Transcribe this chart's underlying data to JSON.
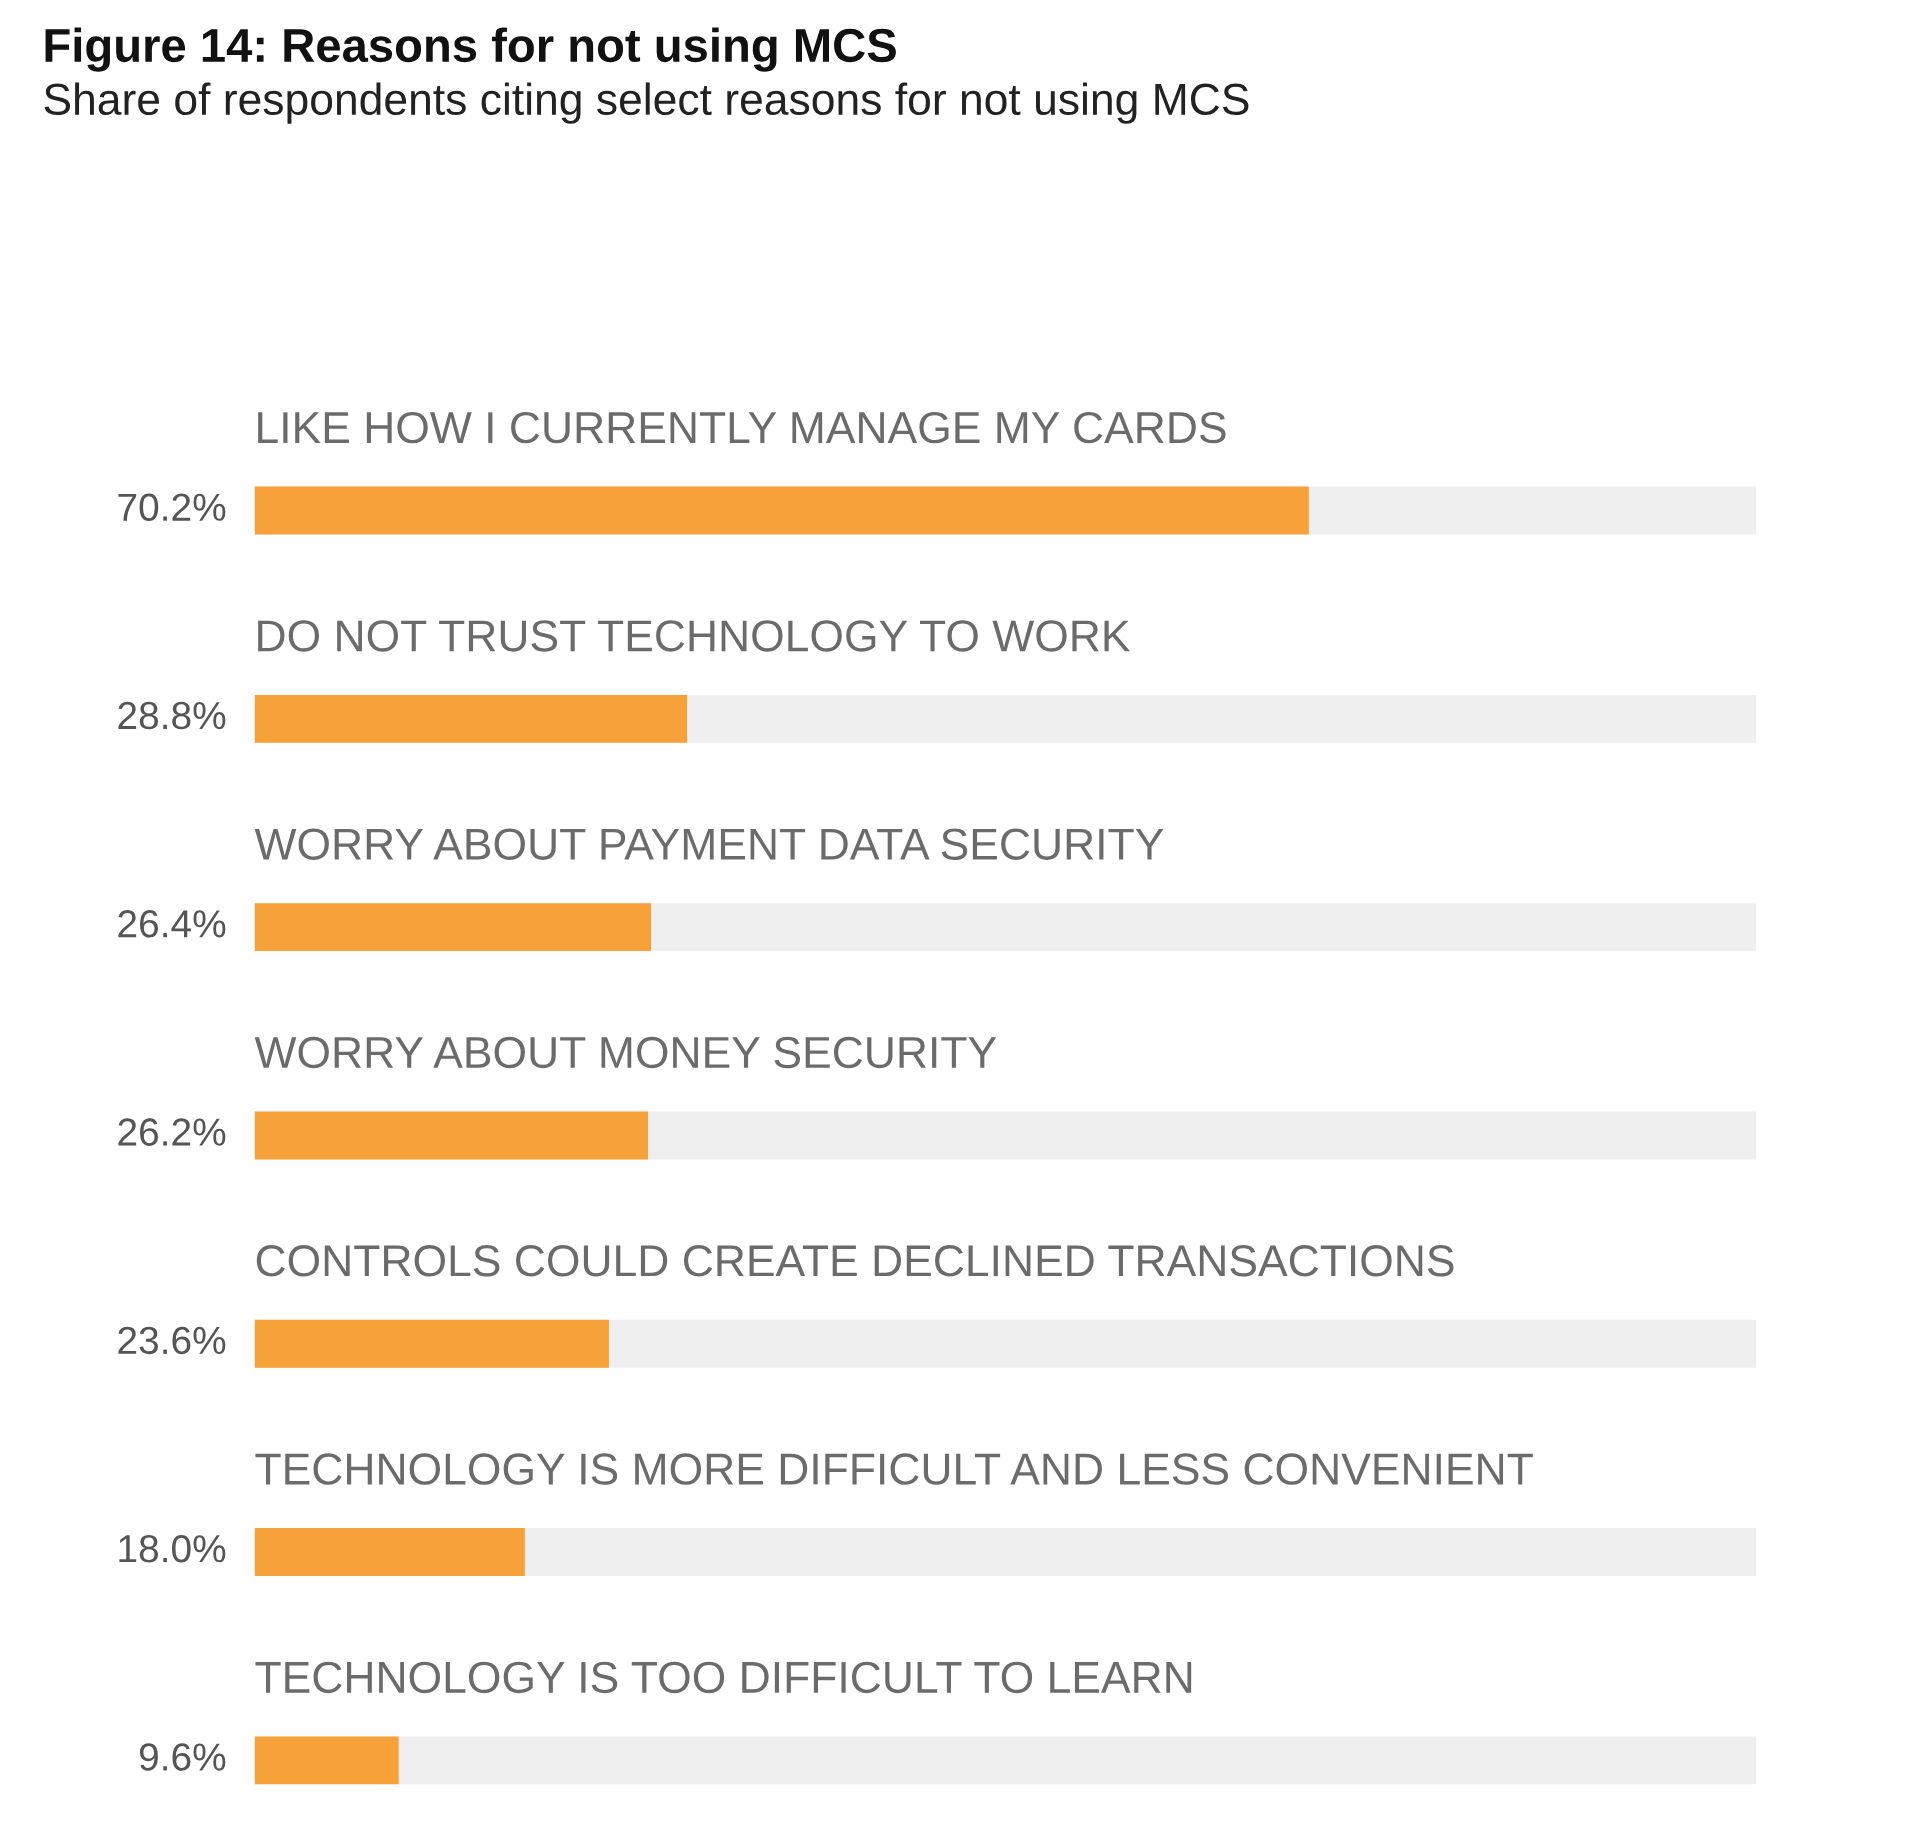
{
  "chart_data": {
    "type": "bar",
    "orientation": "horizontal",
    "title": "Figure 14: Reasons for not using MCS",
    "subtitle": "Share of respondents citing select reasons for not using MCS",
    "categories": [
      "LIKE HOW I CURRENTLY MANAGE MY CARDS",
      "DO NOT TRUST TECHNOLOGY TO WORK",
      "WORRY ABOUT PAYMENT DATA SECURITY",
      "WORRY ABOUT MONEY SECURITY",
      "CONTROLS COULD CREATE DECLINED TRANSACTIONS",
      "TECHNOLOGY IS MORE DIFFICULT AND LESS CONVENIENT",
      "TECHNOLOGY IS TOO DIFFICULT TO LEARN"
    ],
    "values": [
      70.2,
      28.8,
      26.4,
      26.2,
      23.6,
      18.0,
      9.6
    ],
    "value_labels": [
      "70.2%",
      "28.8%",
      "26.4%",
      "26.2%",
      "23.6%",
      "18.0%",
      "9.6%"
    ],
    "color": "#f7a13a",
    "xlim": [
      0,
      100
    ]
  }
}
